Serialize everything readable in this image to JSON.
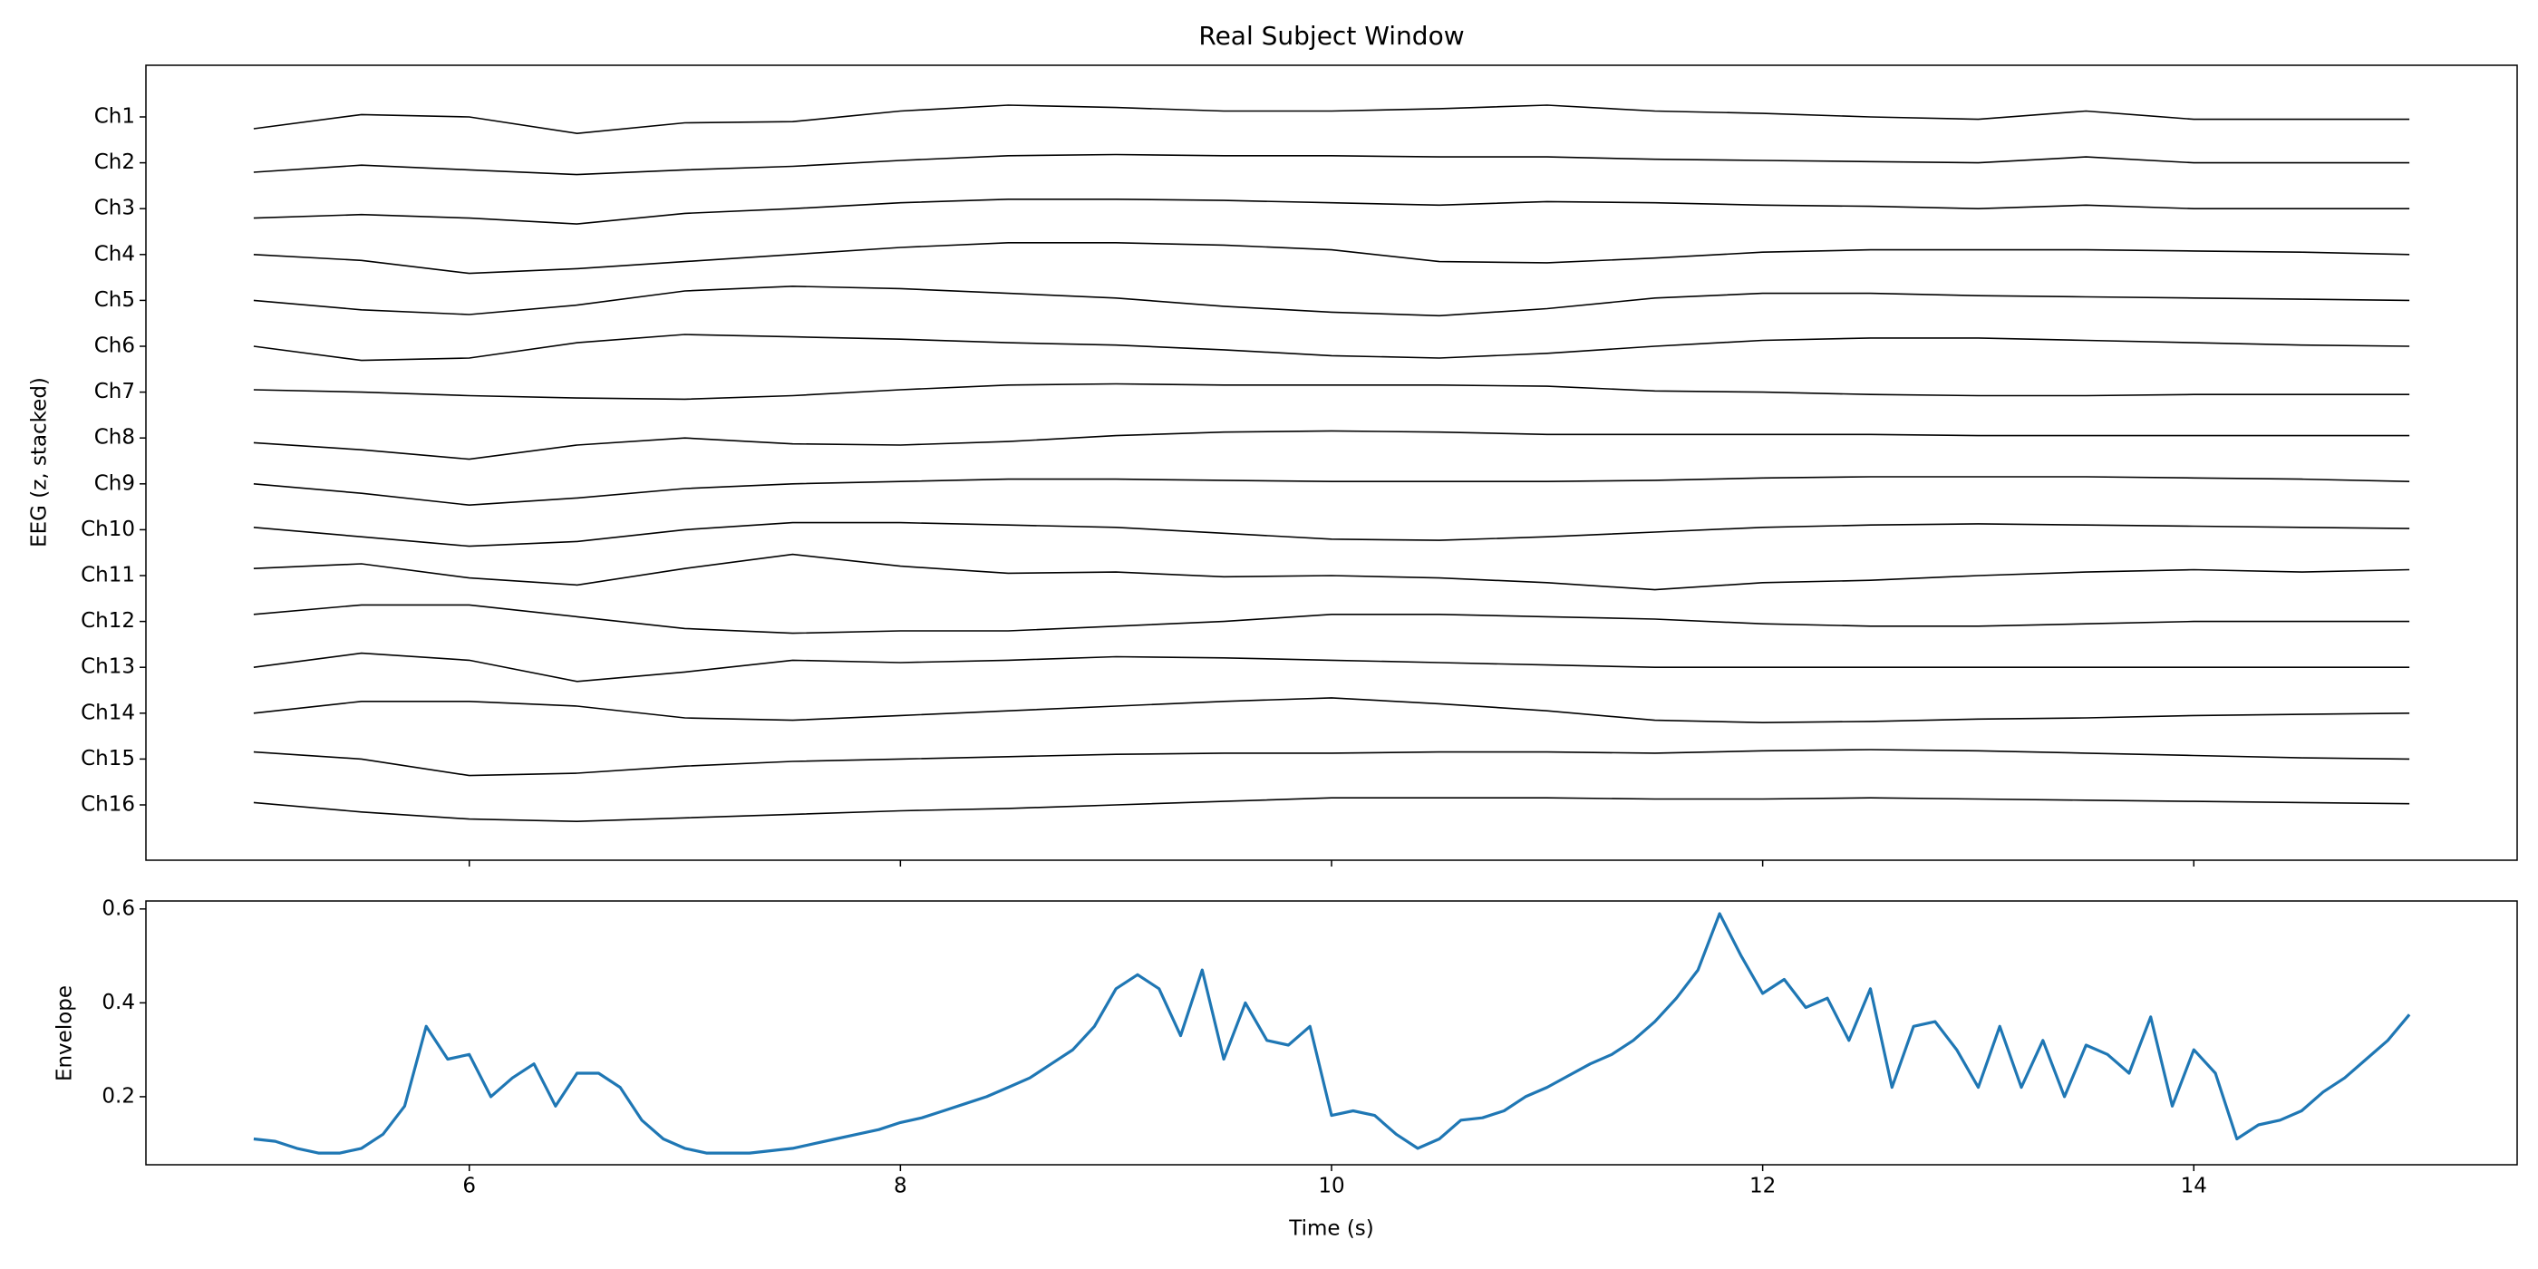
{
  "chart_data": [
    {
      "type": "line",
      "title": "Real Subject Window",
      "ylabel": "EEG (z, stacked)",
      "color": "#000000",
      "x": [
        5,
        5.5,
        6,
        6.5,
        7,
        7.5,
        8,
        8.5,
        9,
        9.5,
        10,
        10.5,
        11,
        11.5,
        12,
        12.5,
        13,
        13.5,
        14,
        14.5,
        15
      ],
      "xlim": [
        4.5,
        15.5
      ],
      "series": [
        {
          "name": "Ch1",
          "values": [
            -1,
            0.2,
            0,
            -1.4,
            -0.5,
            -0.4,
            0.5,
            1,
            0.8,
            0.5,
            0.5,
            0.7,
            1,
            0.5,
            0.3,
            0,
            -0.2,
            0.5,
            -0.2,
            -0.2,
            -0.2
          ]
        },
        {
          "name": "Ch2",
          "values": [
            -0.8,
            -0.2,
            -0.6,
            -1,
            -0.6,
            -0.3,
            0.2,
            0.6,
            0.7,
            0.6,
            0.6,
            0.5,
            0.5,
            0.3,
            0.2,
            0.1,
            0,
            0.5,
            0,
            0,
            0
          ]
        },
        {
          "name": "Ch3",
          "values": [
            -0.8,
            -0.5,
            -0.8,
            -1.3,
            -0.4,
            0,
            0.5,
            0.8,
            0.8,
            0.7,
            0.5,
            0.3,
            0.6,
            0.5,
            0.3,
            0.2,
            0,
            0.3,
            0,
            0,
            0
          ]
        },
        {
          "name": "Ch4",
          "values": [
            0,
            -0.5,
            -1.6,
            -1.2,
            -0.6,
            0,
            0.6,
            1,
            1,
            0.8,
            0.4,
            -0.6,
            -0.7,
            -0.3,
            0.2,
            0.4,
            0.4,
            0.4,
            0.3,
            0.2,
            0
          ]
        },
        {
          "name": "Ch5",
          "values": [
            0,
            -0.8,
            -1.2,
            -0.4,
            0.8,
            1.2,
            1,
            0.6,
            0.2,
            -0.5,
            -1,
            -1.3,
            -0.7,
            0.2,
            0.6,
            0.6,
            0.4,
            0.3,
            0.2,
            0.1,
            0
          ]
        },
        {
          "name": "Ch6",
          "values": [
            0,
            -1.2,
            -1,
            0.3,
            1,
            0.8,
            0.6,
            0.3,
            0.1,
            -0.3,
            -0.8,
            -1,
            -0.6,
            0,
            0.5,
            0.7,
            0.7,
            0.5,
            0.3,
            0.1,
            0
          ]
        },
        {
          "name": "Ch7",
          "values": [
            0.2,
            0,
            -0.3,
            -0.5,
            -0.6,
            -0.3,
            0.2,
            0.6,
            0.7,
            0.6,
            0.6,
            0.6,
            0.5,
            0.1,
            0,
            -0.2,
            -0.3,
            -0.3,
            -0.2,
            -0.2,
            -0.2
          ]
        },
        {
          "name": "Ch8",
          "values": [
            -0.4,
            -1,
            -1.8,
            -0.6,
            0,
            -0.5,
            -0.6,
            -0.3,
            0.2,
            0.5,
            0.6,
            0.5,
            0.3,
            0.3,
            0.3,
            0.3,
            0.2,
            0.2,
            0.2,
            0.2,
            0.2
          ]
        },
        {
          "name": "Ch9",
          "values": [
            0,
            -0.8,
            -1.8,
            -1.2,
            -0.4,
            0,
            0.2,
            0.4,
            0.4,
            0.3,
            0.2,
            0.2,
            0.2,
            0.3,
            0.5,
            0.6,
            0.6,
            0.6,
            0.5,
            0.4,
            0.2
          ]
        },
        {
          "name": "Ch10",
          "values": [
            0.2,
            -0.6,
            -1.4,
            -1,
            0,
            0.6,
            0.6,
            0.4,
            0.2,
            -0.3,
            -0.8,
            -0.9,
            -0.6,
            -0.2,
            0.2,
            0.4,
            0.5,
            0.4,
            0.3,
            0.2,
            0.1
          ]
        },
        {
          "name": "Ch11",
          "values": [
            0.6,
            1,
            -0.2,
            -0.8,
            0.6,
            1.8,
            0.8,
            0.2,
            0.3,
            -0.1,
            0,
            -0.2,
            -0.6,
            -1.2,
            -0.6,
            -0.4,
            0,
            0.3,
            0.5,
            0.3,
            0.5
          ]
        },
        {
          "name": "Ch12",
          "values": [
            0.6,
            1.4,
            1.4,
            0.4,
            -0.6,
            -1,
            -0.8,
            -0.8,
            -0.4,
            0,
            0.6,
            0.6,
            0.4,
            0.2,
            -0.2,
            -0.4,
            -0.4,
            -0.2,
            0,
            0,
            0
          ]
        },
        {
          "name": "Ch13",
          "values": [
            0,
            1.2,
            0.6,
            -1.2,
            -0.4,
            0.6,
            0.4,
            0.6,
            0.9,
            0.8,
            0.6,
            0.4,
            0.2,
            0,
            0,
            0,
            0,
            0,
            0,
            0,
            0
          ]
        },
        {
          "name": "Ch14",
          "values": [
            0,
            1,
            1,
            0.6,
            -0.4,
            -0.6,
            -0.2,
            0.2,
            0.6,
            1,
            1.3,
            0.8,
            0.2,
            -0.6,
            -0.8,
            -0.7,
            -0.5,
            -0.4,
            -0.2,
            -0.1,
            0
          ]
        },
        {
          "name": "Ch15",
          "values": [
            0.6,
            0,
            -1.4,
            -1.2,
            -0.6,
            -0.2,
            0,
            0.2,
            0.4,
            0.5,
            0.5,
            0.6,
            0.6,
            0.5,
            0.7,
            0.8,
            0.7,
            0.5,
            0.3,
            0.1,
            0
          ]
        },
        {
          "name": "Ch16",
          "values": [
            0.2,
            -0.6,
            -1.2,
            -1.4,
            -1.1,
            -0.8,
            -0.5,
            -0.3,
            0,
            0.3,
            0.6,
            0.6,
            0.6,
            0.5,
            0.5,
            0.6,
            0.5,
            0.4,
            0.3,
            0.2,
            0.1
          ]
        }
      ]
    },
    {
      "type": "line",
      "xlabel": "Time (s)",
      "ylabel": "Envelope",
      "color": "#1f77b4",
      "x": [
        5,
        5.1,
        5.2,
        5.3,
        5.4,
        5.5,
        5.6,
        5.7,
        5.8,
        5.9,
        6,
        6.1,
        6.2,
        6.3,
        6.4,
        6.5,
        6.6,
        6.7,
        6.8,
        6.9,
        7,
        7.1,
        7.2,
        7.3,
        7.4,
        7.5,
        7.6,
        7.7,
        7.8,
        7.9,
        8,
        8.1,
        8.2,
        8.3,
        8.4,
        8.5,
        8.6,
        8.7,
        8.8,
        8.9,
        9,
        9.1,
        9.2,
        9.3,
        9.4,
        9.5,
        9.6,
        9.7,
        9.8,
        9.9,
        10,
        10.1,
        10.2,
        10.3,
        10.4,
        10.5,
        10.6,
        10.7,
        10.8,
        10.9,
        11,
        11.1,
        11.2,
        11.3,
        11.4,
        11.5,
        11.6,
        11.7,
        11.8,
        11.9,
        12,
        12.1,
        12.2,
        12.3,
        12.4,
        12.5,
        12.6,
        12.7,
        12.8,
        12.9,
        13,
        13.1,
        13.2,
        13.3,
        13.4,
        13.5,
        13.6,
        13.7,
        13.8,
        13.9,
        14,
        14.1,
        14.2,
        14.3,
        14.4,
        14.5,
        14.6,
        14.7,
        14.8,
        14.9,
        15
      ],
      "values": [
        0.11,
        0.105,
        0.09,
        0.08,
        0.08,
        0.09,
        0.12,
        0.18,
        0.35,
        0.28,
        0.29,
        0.2,
        0.24,
        0.27,
        0.18,
        0.25,
        0.25,
        0.22,
        0.15,
        0.11,
        0.09,
        0.08,
        0.08,
        0.08,
        0.085,
        0.09,
        0.1,
        0.11,
        0.12,
        0.13,
        0.145,
        0.155,
        0.17,
        0.185,
        0.2,
        0.22,
        0.24,
        0.27,
        0.3,
        0.35,
        0.43,
        0.46,
        0.43,
        0.33,
        0.47,
        0.28,
        0.4,
        0.32,
        0.31,
        0.35,
        0.16,
        0.17,
        0.16,
        0.12,
        0.09,
        0.11,
        0.15,
        0.155,
        0.17,
        0.2,
        0.22,
        0.245,
        0.27,
        0.29,
        0.32,
        0.36,
        0.41,
        0.47,
        0.59,
        0.5,
        0.42,
        0.45,
        0.39,
        0.41,
        0.32,
        0.43,
        0.22,
        0.35,
        0.36,
        0.3,
        0.22,
        0.35,
        0.22,
        0.32,
        0.2,
        0.31,
        0.29,
        0.25,
        0.37,
        0.18,
        0.3,
        0.25,
        0.11,
        0.14,
        0.15,
        0.17,
        0.21,
        0.24,
        0.28,
        0.32,
        0.375
      ],
      "xlim": [
        4.5,
        15.5
      ],
      "ylim": [
        0.055,
        0.617
      ],
      "xticks": [
        6,
        8,
        10,
        12,
        14
      ],
      "yticks": [
        0.2,
        0.4,
        0.6
      ]
    }
  ]
}
